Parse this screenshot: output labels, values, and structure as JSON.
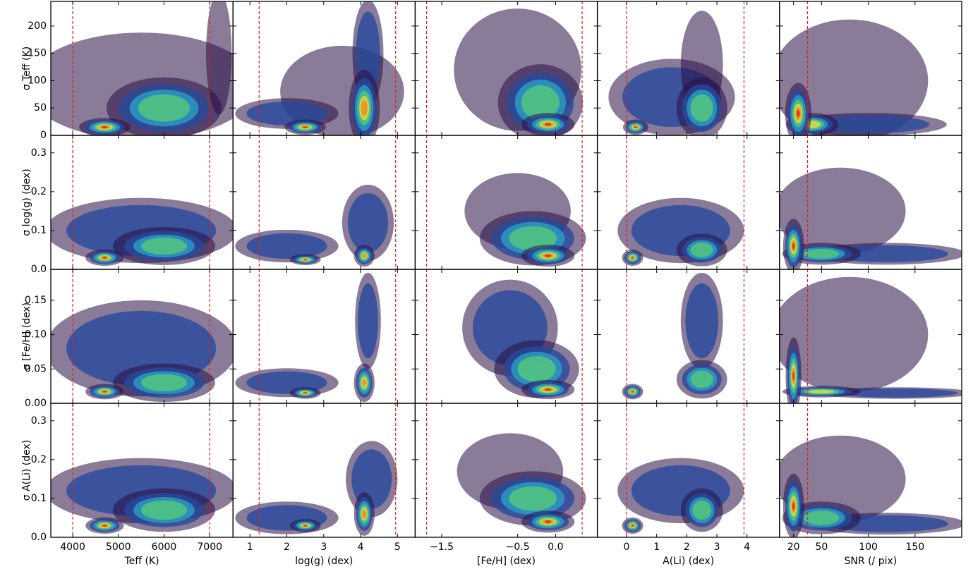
{
  "chart_data": {
    "type": "density-grid",
    "columns": [
      {
        "label": "Teff (K)",
        "xlim": [
          3520,
          7510
        ],
        "xticks": [
          4000,
          5000,
          6000,
          7000
        ],
        "limits": [
          4000,
          7000
        ]
      },
      {
        "label": "log(g) (dex)",
        "xlim": [
          0.54,
          5.48
        ],
        "xticks": [
          1,
          2,
          3,
          4,
          5
        ],
        "limits": [
          1.25,
          4.95
        ]
      },
      {
        "label": "[Fe/H] (dex)",
        "xlim": [
          -1.85,
          0.55
        ],
        "xticks": [
          {
            "value": -1.5,
            "label": "−1.5"
          },
          {
            "value": -0.5,
            "label": "−0.5"
          },
          {
            "value": 0,
            "label": "0.0"
          }
        ],
        "limits": [
          -1.7,
          0.35
        ]
      },
      {
        "label": "A(Li) (dex)",
        "xlim": [
          -0.97,
          5.08
        ],
        "xticks": [
          0,
          1,
          2,
          3,
          4
        ],
        "limits": [
          0,
          3.9
        ]
      },
      {
        "label": "SNR (/ pix)",
        "xlim": [
          5,
          200
        ],
        "xticks": [
          20,
          50,
          100,
          150
        ],
        "limits": [
          35
        ]
      }
    ],
    "rows": [
      {
        "label": "σ Teff (K)",
        "ylim": [
          0,
          245
        ],
        "yticks": [
          0,
          50,
          100,
          150,
          200
        ]
      },
      {
        "label": "σ log(g) (dex)",
        "ylim": [
          0,
          0.345
        ],
        "yticks": [
          {
            "value": 0,
            "label": "0.0"
          },
          0.1,
          0.2,
          0.3
        ]
      },
      {
        "label": "σ [Fe/H] (dex)",
        "ylim": [
          0,
          0.195
        ],
        "yticks": [
          {
            "value": 0,
            "label": "0.00"
          },
          0.05,
          {
            "value": 0.1,
            "label": "0.10"
          },
          0.15
        ]
      },
      {
        "label": "σ A(Li) (dex)",
        "ylim": [
          0,
          0.345
        ],
        "yticks": [
          {
            "value": 0,
            "label": "0.0"
          },
          0.1,
          0.2,
          0.3
        ]
      }
    ],
    "panels": [
      [
        [
          {
            "x": 5500,
            "y": 90,
            "sx": 1800,
            "sy": 70,
            "peak": 0.2
          },
          {
            "x": 7200,
            "y": 150,
            "sx": 200,
            "sy": 80,
            "peak": 0.2
          },
          {
            "x": 6000,
            "y": 50,
            "sx": 900,
            "sy": 40,
            "peak": 0.55
          },
          {
            "x": 4700,
            "y": 15,
            "sx": 400,
            "sy": 12,
            "peak": 1.0
          }
        ],
        [
          {
            "x": 3.5,
            "y": 80,
            "sx": 1.2,
            "sy": 60,
            "peak": 0.2
          },
          {
            "x": 4.2,
            "y": 150,
            "sx": 0.3,
            "sy": 70,
            "peak": 0.25
          },
          {
            "x": 2,
            "y": 40,
            "sx": 1,
            "sy": 20,
            "peak": 0.3
          },
          {
            "x": 4.1,
            "y": 50,
            "sx": 0.3,
            "sy": 50,
            "peak": 0.8
          },
          {
            "x": 2.5,
            "y": 15,
            "sx": 0.4,
            "sy": 10,
            "peak": 1.0
          }
        ],
        [
          {
            "x": -0.5,
            "y": 120,
            "sx": 0.6,
            "sy": 80,
            "peak": 0.2
          },
          {
            "x": -0.2,
            "y": 60,
            "sx": 0.4,
            "sy": 50,
            "peak": 0.6
          },
          {
            "x": -0.1,
            "y": 20,
            "sx": 0.25,
            "sy": 15,
            "peak": 1.0
          }
        ],
        [
          {
            "x": 1.5,
            "y": 70,
            "sx": 1.5,
            "sy": 50,
            "peak": 0.25
          },
          {
            "x": 2.5,
            "y": 130,
            "sx": 0.5,
            "sy": 70,
            "peak": 0.2
          },
          {
            "x": 2.5,
            "y": 50,
            "sx": 0.6,
            "sy": 40,
            "peak": 0.6
          },
          {
            "x": 0.3,
            "y": 15,
            "sx": 0.3,
            "sy": 10,
            "peak": 1.0
          }
        ],
        [
          {
            "x": 80,
            "y": 100,
            "sx": 60,
            "sy": 80,
            "peak": 0.2
          },
          {
            "x": 100,
            "y": 20,
            "sx": 60,
            "sy": 15,
            "peak": 0.35
          },
          {
            "x": 40,
            "y": 20,
            "sx": 20,
            "sy": 15,
            "peak": 0.7
          },
          {
            "x": 25,
            "y": 40,
            "sx": 10,
            "sy": 40,
            "peak": 1.0
          }
        ]
      ],
      [
        [
          {
            "x": 5500,
            "y": 0.1,
            "sx": 1500,
            "sy": 0.06,
            "peak": 0.25
          },
          {
            "x": 6000,
            "y": 0.06,
            "sx": 800,
            "sy": 0.035,
            "peak": 0.55
          },
          {
            "x": 4700,
            "y": 0.03,
            "sx": 300,
            "sy": 0.015,
            "peak": 1.0
          }
        ],
        [
          {
            "x": 4.2,
            "y": 0.12,
            "sx": 0.5,
            "sy": 0.07,
            "peak": 0.3
          },
          {
            "x": 2,
            "y": 0.06,
            "sx": 1,
            "sy": 0.03,
            "peak": 0.3
          },
          {
            "x": 4.1,
            "y": 0.035,
            "sx": 0.2,
            "sy": 0.02,
            "peak": 0.9
          },
          {
            "x": 2.5,
            "y": 0.025,
            "sx": 0.3,
            "sy": 0.01,
            "peak": 1.0
          }
        ],
        [
          {
            "x": -0.5,
            "y": 0.15,
            "sx": 0.5,
            "sy": 0.07,
            "peak": 0.2
          },
          {
            "x": -0.3,
            "y": 0.08,
            "sx": 0.5,
            "sy": 0.05,
            "peak": 0.5
          },
          {
            "x": -0.1,
            "y": 0.035,
            "sx": 0.25,
            "sy": 0.02,
            "peak": 1.0
          }
        ],
        [
          {
            "x": 1.8,
            "y": 0.1,
            "sx": 1.5,
            "sy": 0.06,
            "peak": 0.25
          },
          {
            "x": 2.5,
            "y": 0.05,
            "sx": 0.6,
            "sy": 0.03,
            "peak": 0.6
          },
          {
            "x": 0.2,
            "y": 0.03,
            "sx": 0.25,
            "sy": 0.015,
            "peak": 1.0
          }
        ],
        [
          {
            "x": 70,
            "y": 0.15,
            "sx": 50,
            "sy": 0.08,
            "peak": 0.2
          },
          {
            "x": 120,
            "y": 0.04,
            "sx": 60,
            "sy": 0.02,
            "peak": 0.35
          },
          {
            "x": 50,
            "y": 0.04,
            "sx": 30,
            "sy": 0.02,
            "peak": 0.6
          },
          {
            "x": 20,
            "y": 0.06,
            "sx": 8,
            "sy": 0.05,
            "peak": 1.0
          }
        ]
      ],
      [
        [
          {
            "x": 5500,
            "y": 0.08,
            "sx": 1500,
            "sy": 0.05,
            "peak": 0.25
          },
          {
            "x": 6000,
            "y": 0.03,
            "sx": 800,
            "sy": 0.02,
            "peak": 0.55
          },
          {
            "x": 4700,
            "y": 0.017,
            "sx": 300,
            "sy": 0.008,
            "peak": 1.0
          }
        ],
        [
          {
            "x": 4.2,
            "y": 0.12,
            "sx": 0.25,
            "sy": 0.05,
            "peak": 0.35
          },
          {
            "x": 2,
            "y": 0.03,
            "sx": 1,
            "sy": 0.015,
            "peak": 0.3
          },
          {
            "x": 4.1,
            "y": 0.03,
            "sx": 0.2,
            "sy": 0.02,
            "peak": 0.9
          },
          {
            "x": 2.5,
            "y": 0.015,
            "sx": 0.3,
            "sy": 0.006,
            "peak": 1.0
          }
        ],
        [
          {
            "x": -0.6,
            "y": 0.11,
            "sx": 0.45,
            "sy": 0.05,
            "peak": 0.25
          },
          {
            "x": -0.25,
            "y": 0.05,
            "sx": 0.4,
            "sy": 0.03,
            "peak": 0.6
          },
          {
            "x": -0.1,
            "y": 0.02,
            "sx": 0.25,
            "sy": 0.01,
            "peak": 1.0
          }
        ],
        [
          {
            "x": 2.5,
            "y": 0.12,
            "sx": 0.5,
            "sy": 0.05,
            "peak": 0.25
          },
          {
            "x": 2.5,
            "y": 0.035,
            "sx": 0.6,
            "sy": 0.02,
            "peak": 0.6
          },
          {
            "x": 0.2,
            "y": 0.017,
            "sx": 0.25,
            "sy": 0.008,
            "peak": 1.0
          }
        ],
        [
          {
            "x": 80,
            "y": 0.1,
            "sx": 60,
            "sy": 0.06,
            "peak": 0.2
          },
          {
            "x": 130,
            "y": 0.015,
            "sx": 60,
            "sy": 0.006,
            "peak": 0.35
          },
          {
            "x": 50,
            "y": 0.017,
            "sx": 30,
            "sy": 0.006,
            "peak": 0.7
          },
          {
            "x": 20,
            "y": 0.04,
            "sx": 6,
            "sy": 0.04,
            "peak": 1.0
          }
        ]
      ],
      [
        [
          {
            "x": 5500,
            "y": 0.12,
            "sx": 1500,
            "sy": 0.06,
            "peak": 0.25
          },
          {
            "x": 6000,
            "y": 0.07,
            "sx": 800,
            "sy": 0.04,
            "peak": 0.55
          },
          {
            "x": 4700,
            "y": 0.03,
            "sx": 300,
            "sy": 0.015,
            "peak": 1.0
          }
        ],
        [
          {
            "x": 4.3,
            "y": 0.15,
            "sx": 0.5,
            "sy": 0.07,
            "peak": 0.3
          },
          {
            "x": 2,
            "y": 0.05,
            "sx": 1,
            "sy": 0.03,
            "peak": 0.3
          },
          {
            "x": 4.1,
            "y": 0.06,
            "sx": 0.2,
            "sy": 0.04,
            "peak": 0.9
          },
          {
            "x": 2.5,
            "y": 0.03,
            "sx": 0.3,
            "sy": 0.012,
            "peak": 1.0
          }
        ],
        [
          {
            "x": -0.6,
            "y": 0.17,
            "sx": 0.5,
            "sy": 0.07,
            "peak": 0.2
          },
          {
            "x": -0.3,
            "y": 0.1,
            "sx": 0.5,
            "sy": 0.05,
            "peak": 0.5
          },
          {
            "x": -0.1,
            "y": 0.04,
            "sx": 0.25,
            "sy": 0.02,
            "peak": 1.0
          }
        ],
        [
          {
            "x": 1.8,
            "y": 0.12,
            "sx": 1.5,
            "sy": 0.06,
            "peak": 0.25
          },
          {
            "x": 2.5,
            "y": 0.07,
            "sx": 0.5,
            "sy": 0.04,
            "peak": 0.6
          },
          {
            "x": 0.2,
            "y": 0.03,
            "sx": 0.25,
            "sy": 0.015,
            "peak": 1.0
          }
        ],
        [
          {
            "x": 70,
            "y": 0.15,
            "sx": 50,
            "sy": 0.08,
            "peak": 0.2
          },
          {
            "x": 120,
            "y": 0.035,
            "sx": 60,
            "sy": 0.02,
            "peak": 0.35
          },
          {
            "x": 50,
            "y": 0.05,
            "sx": 30,
            "sy": 0.03,
            "peak": 0.6
          },
          {
            "x": 20,
            "y": 0.08,
            "sx": 8,
            "sy": 0.06,
            "peak": 1.0
          }
        ]
      ]
    ]
  }
}
